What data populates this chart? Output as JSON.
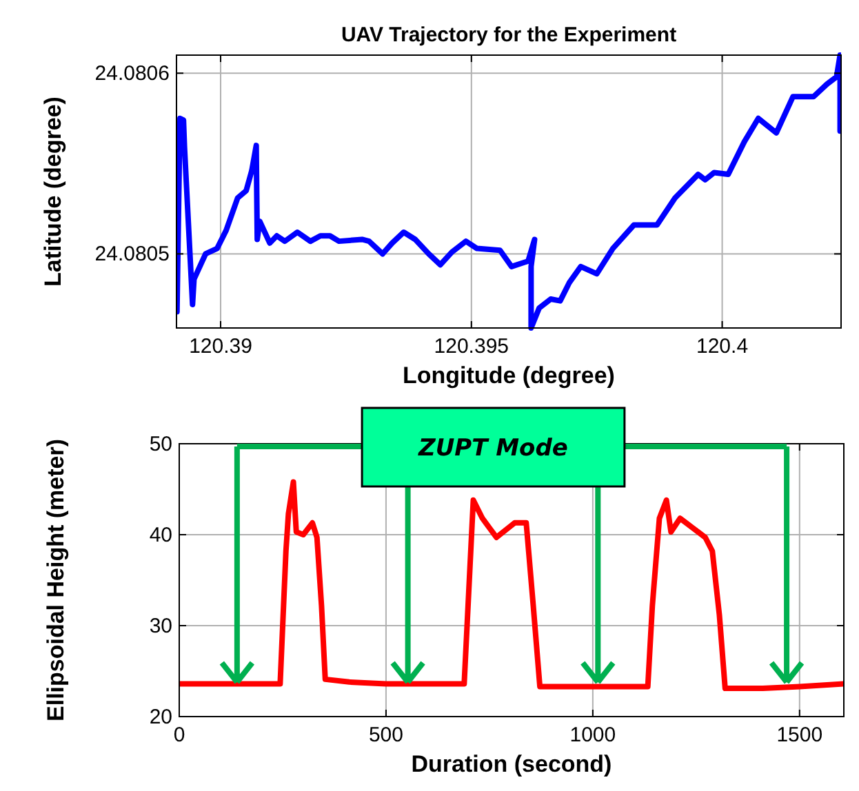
{
  "chart_data": [
    {
      "type": "line",
      "title": "UAV Trajectory for the Experiment",
      "xlabel": "Longitude (degree)",
      "ylabel": "Latitude (degree)",
      "xlim": [
        120.38912,
        120.40237
      ],
      "ylim": [
        24.080459,
        24.08061
      ],
      "xticks": [
        120.39,
        120.395,
        {
          "value": 120.4,
          "label": "120.4"
        }
      ],
      "yticks": [
        24.0805,
        24.0806
      ],
      "grid": true,
      "series": [
        {
          "color": "#0000ff",
          "x": [
            120.38913,
            120.38919,
            120.38926,
            120.38928,
            120.38944,
            120.38947,
            120.3897,
            120.38993,
            120.39011,
            120.39034,
            120.39051,
            120.39062,
            120.39071,
            120.39073,
            120.39078,
            120.39098,
            120.39112,
            120.39128,
            120.39153,
            120.39179,
            120.39199,
            120.39218,
            120.39236,
            120.39282,
            120.39296,
            120.39323,
            120.39342,
            120.39365,
            120.39388,
            120.39415,
            120.39438,
            120.39461,
            120.39489,
            120.39511,
            120.39557,
            120.3958,
            120.39613,
            120.39626,
            120.39619,
            120.39619,
            120.39635,
            120.39658,
            120.39677,
            120.39695,
            120.39718,
            120.3975,
            120.39782,
            120.39824,
            120.3987,
            120.39906,
            120.39952,
            120.39966,
            120.39984,
            120.40012,
            120.40044,
            120.40072,
            120.40108,
            120.40141,
            120.40182,
            120.40209,
            120.40228,
            120.40235,
            120.40235
          ],
          "values": [
            24.080468,
            24.080575,
            24.080574,
            24.080559,
            24.080472,
            24.080486,
            24.0805,
            24.080503,
            24.080513,
            24.080531,
            24.080535,
            24.080546,
            24.08056,
            24.080508,
            24.080518,
            24.080506,
            24.08051,
            24.080507,
            24.080512,
            24.080507,
            24.08051,
            24.08051,
            24.080507,
            24.080508,
            24.080507,
            24.0805,
            24.080506,
            24.080512,
            24.080508,
            24.0805,
            24.080494,
            24.080501,
            24.080507,
            24.080503,
            24.080502,
            24.080493,
            24.080496,
            24.080508,
            24.080493,
            24.080459,
            24.08047,
            24.080475,
            24.080474,
            24.080484,
            24.080493,
            24.080489,
            24.080503,
            24.080516,
            24.080516,
            24.080531,
            24.080544,
            24.080541,
            24.080545,
            24.080544,
            24.080562,
            24.080575,
            24.080567,
            24.080587,
            24.080587,
            24.080594,
            24.080598,
            24.08061,
            24.080568
          ]
        }
      ]
    },
    {
      "type": "line",
      "xlabel": "Duration (second)",
      "ylabel": "Ellipsoidal Height (meter)",
      "xlim": [
        0,
        1607
      ],
      "ylim": [
        20,
        50
      ],
      "xticks": [
        0,
        500,
        1000,
        1500
      ],
      "yticks": [
        20,
        30,
        40,
        50
      ],
      "grid": true,
      "annotations": [
        "ZUPT Mode"
      ],
      "series": [
        {
          "color": "#ff0000",
          "x": [
            0,
            244,
            258,
            264,
            276,
            283,
            300,
            322,
            333,
            344,
            353,
            411,
            500,
            689,
            700,
            711,
            733,
            767,
            811,
            839,
            856,
            872,
            967,
            1133,
            1144,
            1161,
            1178,
            1189,
            1211,
            1272,
            1289,
            1306,
            1320,
            1411,
            1500,
            1606
          ],
          "values": [
            23.6,
            23.6,
            38.2,
            42.3,
            45.8,
            40.3,
            40,
            41.3,
            39.7,
            32.2,
            24.1,
            23.8,
            23.6,
            23.6,
            33.7,
            43.8,
            41.8,
            39.7,
            41.3,
            41.3,
            32.2,
            23.3,
            23.3,
            23.3,
            32.2,
            41.8,
            43.8,
            40.3,
            41.8,
            39.7,
            38.2,
            31.2,
            23.1,
            23.1,
            23.3,
            23.6
          ]
        }
      ]
    }
  ]
}
